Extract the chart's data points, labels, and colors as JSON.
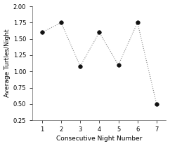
{
  "x": [
    1,
    2,
    3,
    4,
    5,
    6,
    7
  ],
  "y": [
    1.6,
    1.75,
    1.08,
    1.6,
    1.1,
    1.75,
    0.5
  ],
  "xlabel": "Consecutive Night Number",
  "ylabel": "Average Turtles/Night",
  "ylim": [
    0.25,
    2.0
  ],
  "xlim": [
    0.5,
    7.5
  ],
  "yticks": [
    0.25,
    0.5,
    0.75,
    1.0,
    1.25,
    1.5,
    1.75,
    2.0
  ],
  "xticks": [
    1,
    2,
    3,
    4,
    5,
    6,
    7
  ],
  "line_color": "#888888",
  "marker_color": "#111111",
  "marker_size": 4,
  "line_width": 0.8,
  "background_color": "#ffffff",
  "xlabel_fontsize": 6.5,
  "ylabel_fontsize": 6.5,
  "tick_fontsize": 6
}
